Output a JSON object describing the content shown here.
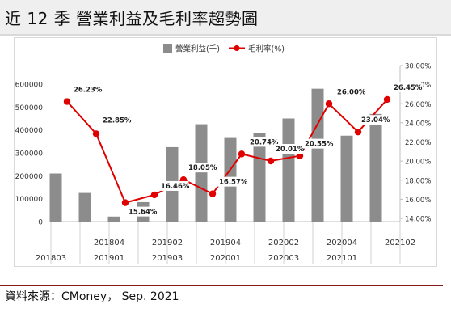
{
  "page_title": "近 12 季  營業利益及毛利率趨勢圖",
  "source": "資料來源：CMoney，  Sep. 2021",
  "colors": {
    "bar": "#8c8c8c",
    "line": "#e00000",
    "rule": "#8b1a1a",
    "title_bg": "#efefef"
  },
  "chart_data": {
    "type": "bar+line",
    "categories": [
      "201803",
      "201804",
      "201901",
      "201902",
      "201903",
      "201904",
      "202001",
      "202002",
      "202003",
      "202004",
      "202101",
      "202102"
    ],
    "legend": {
      "bar_label": "營業利益(千)",
      "line_label": "毛利率(%)",
      "position": "top-center"
    },
    "series": [
      {
        "name": "營業利益(千)",
        "type": "bar",
        "axis": "left",
        "values": [
          210000,
          125000,
          22000,
          85000,
          325000,
          425000,
          365000,
          385000,
          450000,
          580000,
          375000,
          470000
        ]
      },
      {
        "name": "毛利率(%)",
        "type": "line",
        "axis": "right",
        "values": [
          26.23,
          22.85,
          15.64,
          16.46,
          18.05,
          16.57,
          20.74,
          20.01,
          20.55,
          26.0,
          23.04,
          26.45
        ],
        "labels": [
          "26.23%",
          "22.85%",
          "15.64%",
          "16.46%",
          "18.05%",
          "16.57%",
          "20.74%",
          "20.01%",
          "20.55%",
          "26.00%",
          "23.04%",
          "26.45%"
        ]
      }
    ],
    "y_left": {
      "ticks": [
        "600000",
        "500000",
        "400000",
        "300000",
        "200000",
        "100000",
        "0"
      ],
      "range": [
        0,
        600000
      ]
    },
    "y_right": {
      "ticks": [
        "30.00%",
        "28.00%",
        "26.00%",
        "24.00%",
        "22.00%",
        "20.00%",
        "18.00%",
        "16.00%",
        "14.00%"
      ],
      "range": [
        14,
        30
      ]
    },
    "x_tick_labels": [
      "201803",
      "201804",
      "201901",
      "201902",
      "201903",
      "201904",
      "202001",
      "202002",
      "202003",
      "202004",
      "202101",
      "202102"
    ],
    "grid": false
  }
}
